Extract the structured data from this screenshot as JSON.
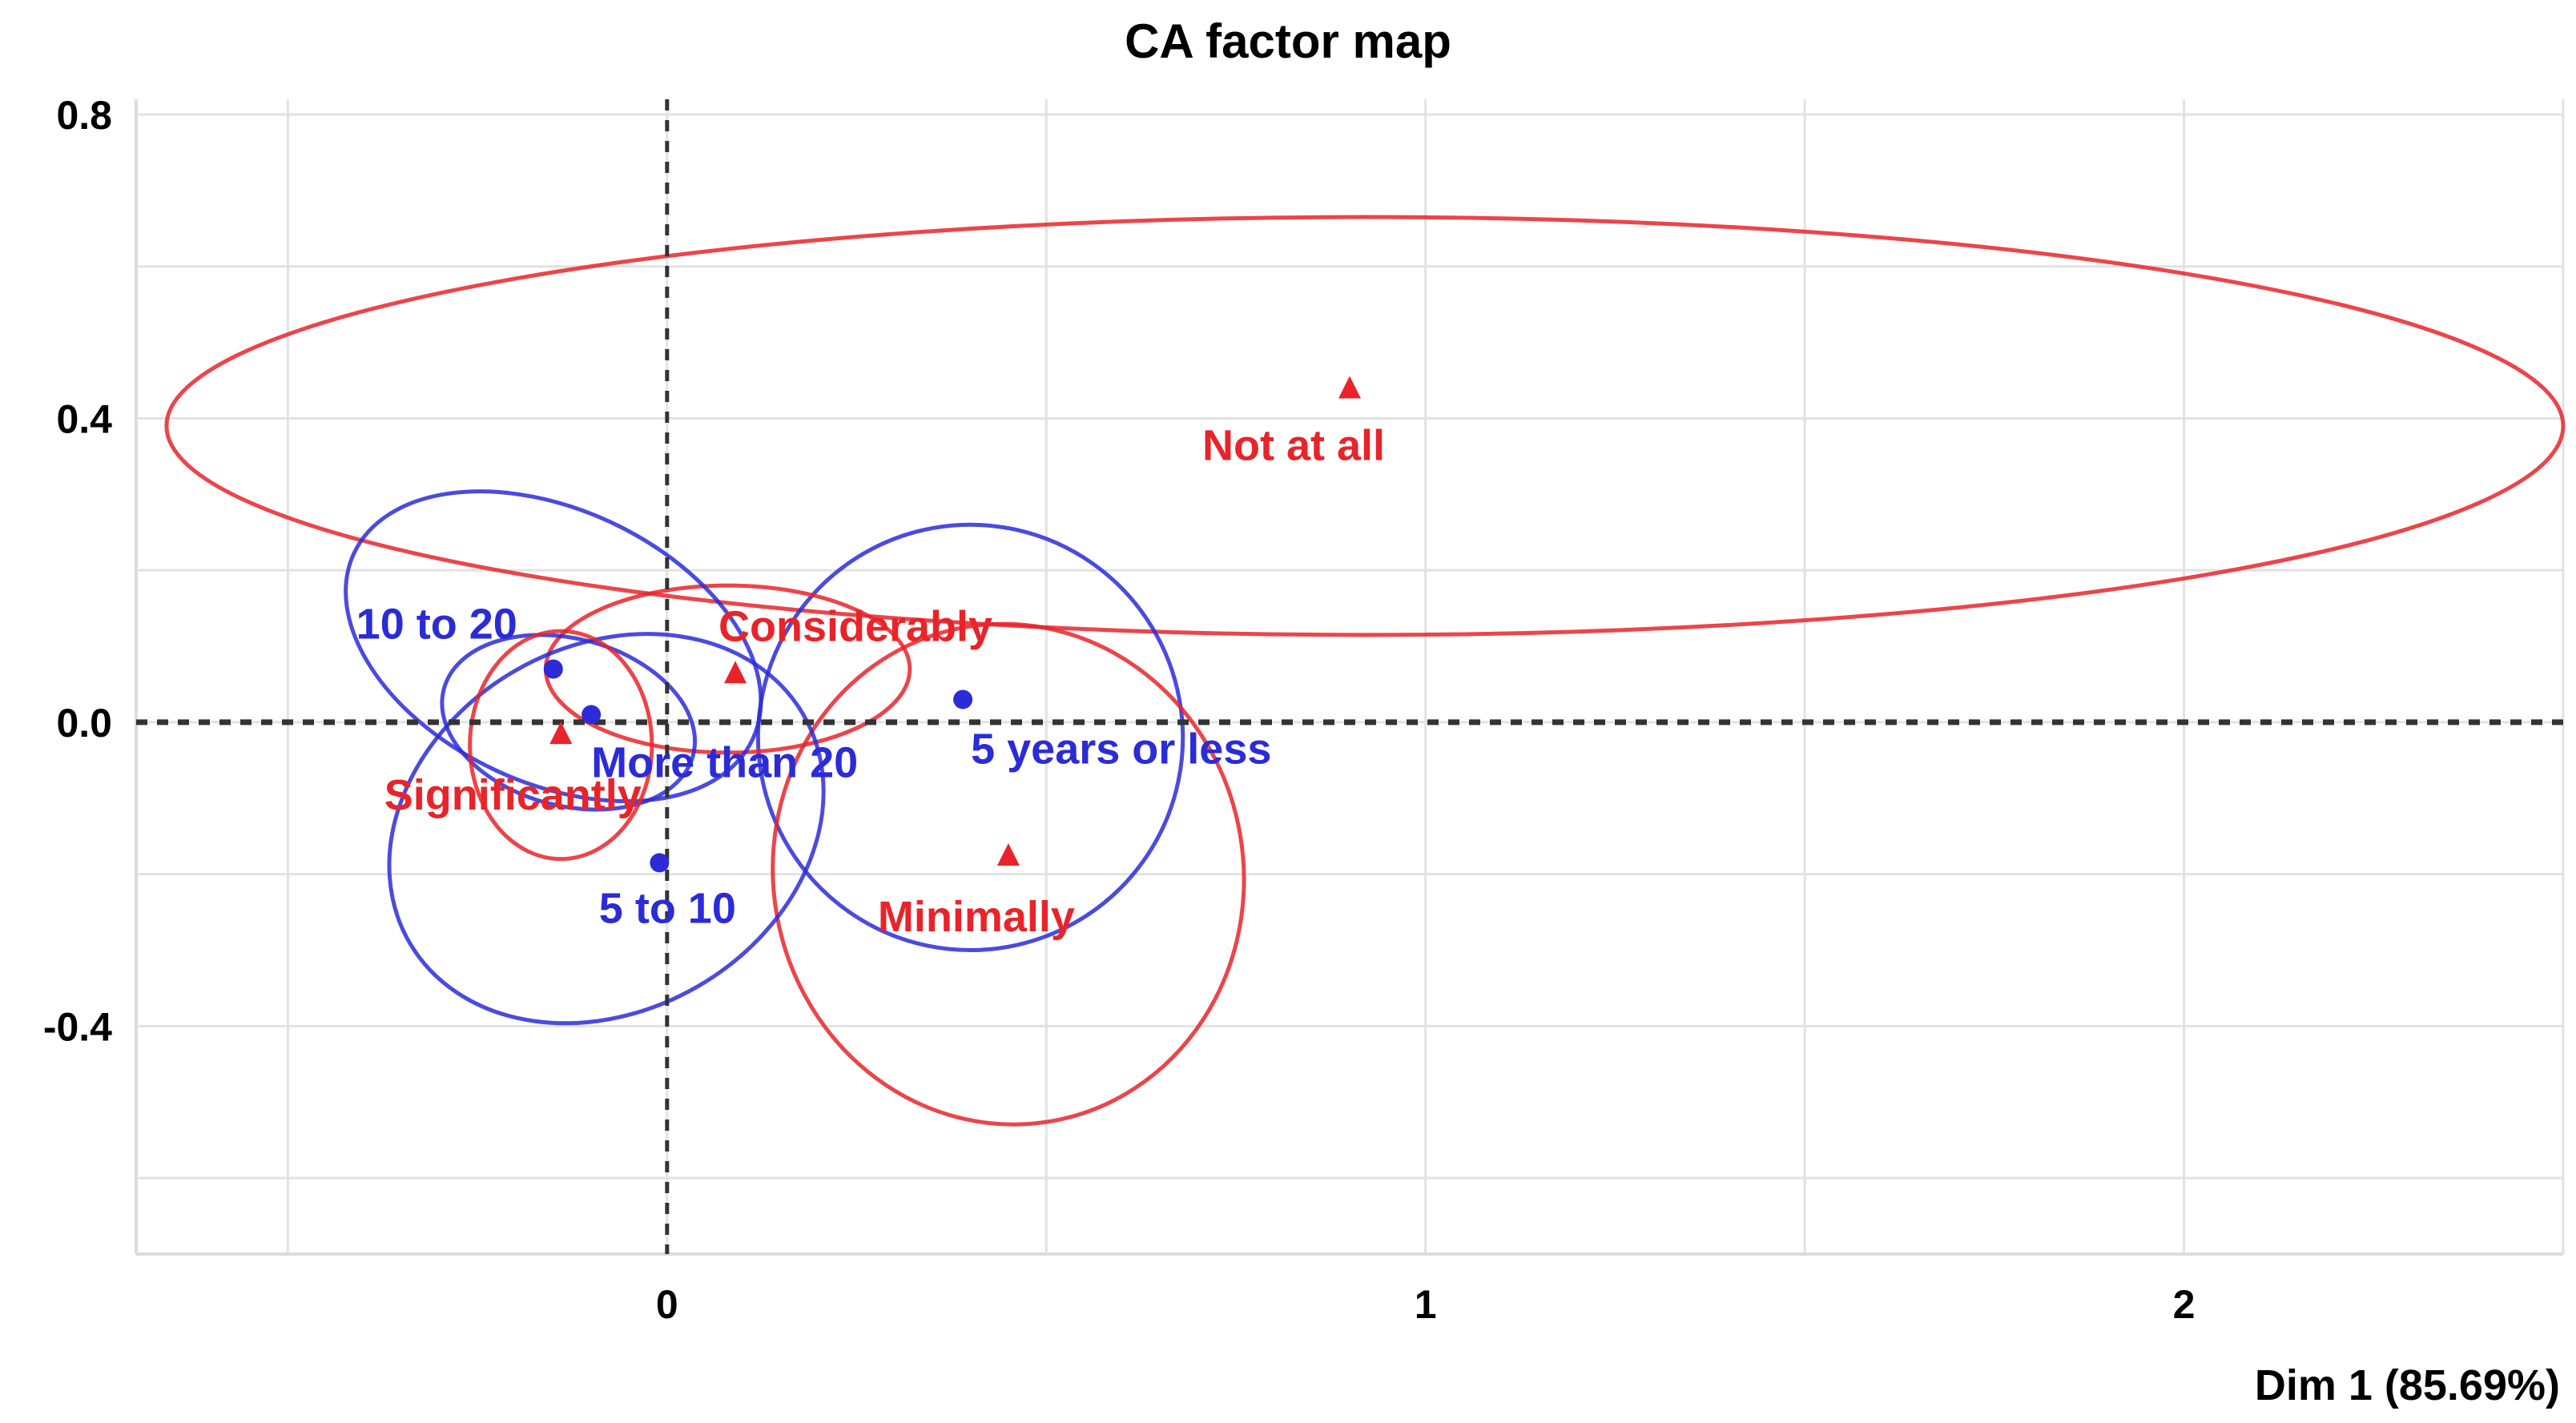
{
  "chart_data": {
    "type": "scatter",
    "title": "CA factor map",
    "xlabel": "Dim 1 (85.69%)",
    "ylabel": "",
    "xlim": [
      -0.7,
      2.5
    ],
    "ylim": [
      -0.7,
      0.82
    ],
    "x_ticks": [
      {
        "value": 0,
        "label": "0"
      },
      {
        "value": 1,
        "label": "1"
      },
      {
        "value": 2,
        "label": "2"
      }
    ],
    "y_ticks": [
      {
        "value": 0.8,
        "label": "0.8"
      },
      {
        "value": 0.4,
        "label": "0.4"
      },
      {
        "value": 0.0,
        "label": "0.0"
      },
      {
        "value": -0.4,
        "label": "-0.4"
      }
    ],
    "grid": true,
    "series": [
      {
        "color": "#2b2bd8",
        "marker": "circle",
        "points": [
          {
            "label": "10 to 20",
            "x": -0.15,
            "y": 0.07
          },
          {
            "label": "More than 20",
            "x": -0.1,
            "y": 0.01
          },
          {
            "label": "5 to 10",
            "x": -0.01,
            "y": -0.185
          },
          {
            "label": "5 years or less",
            "x": 0.39,
            "y": 0.03
          }
        ]
      },
      {
        "color": "#e8242a",
        "marker": "triangle",
        "points": [
          {
            "label": "Not at all",
            "x": 0.9,
            "y": 0.44
          },
          {
            "label": "Considerably",
            "x": 0.09,
            "y": 0.065
          },
          {
            "label": "Significantly",
            "x": -0.14,
            "y": -0.015
          },
          {
            "label": "Minimally",
            "x": 0.45,
            "y": -0.175
          }
        ]
      }
    ],
    "ellipses": [
      {
        "color": "#e8242a",
        "cx": 0.92,
        "cy": 0.39,
        "rx": 1.58,
        "ry": 0.275,
        "angle": 0
      },
      {
        "color": "#2b2bd8",
        "cx": 0.4,
        "cy": -0.02,
        "rx": 0.28,
        "ry": 0.28,
        "angle": -10
      },
      {
        "color": "#e8242a",
        "cx": 0.45,
        "cy": -0.2,
        "rx": 0.31,
        "ry": 0.33,
        "angle": -10
      },
      {
        "color": "#e8242a",
        "cx": 0.08,
        "cy": 0.07,
        "rx": 0.24,
        "ry": 0.11,
        "angle": 0
      },
      {
        "color": "#2b2bd8",
        "cx": -0.15,
        "cy": 0.1,
        "rx": 0.29,
        "ry": 0.18,
        "angle": 25
      },
      {
        "color": "#2b2bd8",
        "cx": -0.08,
        "cy": -0.14,
        "rx": 0.3,
        "ry": 0.24,
        "angle": -30
      },
      {
        "color": "#2b2bd8",
        "cx": -0.13,
        "cy": 0.0,
        "rx": 0.17,
        "ry": 0.11,
        "angle": 15
      },
      {
        "color": "#e8242a",
        "cx": -0.14,
        "cy": -0.03,
        "rx": 0.12,
        "ry": 0.15,
        "angle": 0
      }
    ]
  }
}
